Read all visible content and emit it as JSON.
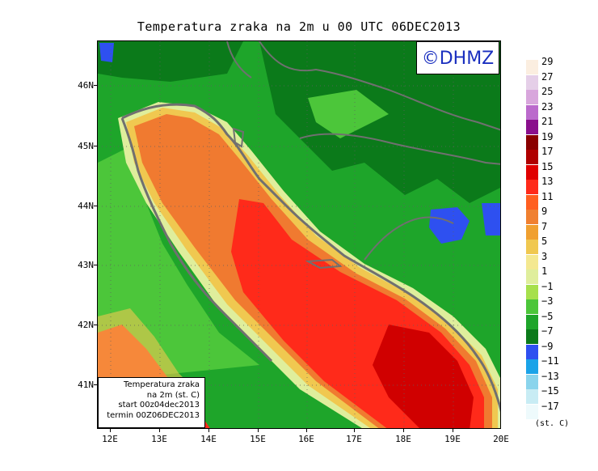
{
  "title": "Temperatura zraka na 2m u 00 UTC 06DEC2013",
  "badge": "©DHMZ",
  "info": {
    "line1": "Temperatura zraka",
    "line2": "na 2m (st. C)",
    "line3": "start 00z04dec2013",
    "line4": "termin 00Z06DEC2013"
  },
  "lat_labels": [
    "46N",
    "45N",
    "44N",
    "43N",
    "42N",
    "41N"
  ],
  "lon_labels": [
    "12E",
    "13E",
    "14E",
    "15E",
    "16E",
    "17E",
    "18E",
    "19E",
    "20E"
  ],
  "legend": {
    "unit": "(st. C)",
    "labels": [
      "29",
      "27",
      "25",
      "23",
      "21",
      "19",
      "17",
      "15",
      "13",
      "11",
      "9",
      "7",
      "5",
      "3",
      "1",
      "−1",
      "−3",
      "−5",
      "−7",
      "−9",
      "−11",
      "−13",
      "−15",
      "−17"
    ],
    "colors": [
      "#fbeee0",
      "#e5cfe8",
      "#d8a6dc",
      "#bb6acc",
      "#8a0f8c",
      "#8a0000",
      "#b00000",
      "#e00000",
      "#ff2a1a",
      "#ff5f20",
      "#f08030",
      "#f0a030",
      "#f0c850",
      "#f4e890",
      "#dfee9c",
      "#a6e04c",
      "#4cc63a",
      "#1ea52a",
      "#0b7a1a",
      "#2e50f0",
      "#1aa3e8",
      "#8ad4ec",
      "#c8ecf4",
      "#eefafc"
    ]
  },
  "map_colors": {
    "land_dark": "#0b7a1a",
    "land_mid": "#1ea52a",
    "land_light": "#4cc63a",
    "coast_pale": "#dfee9c",
    "coast_yellow": "#f0c850",
    "sea_orange": "#f07a30",
    "sea_red": "#ff2a1a",
    "sea_dark": "#d00000",
    "cold_blue": "#2e50f0",
    "border": "#707070"
  }
}
